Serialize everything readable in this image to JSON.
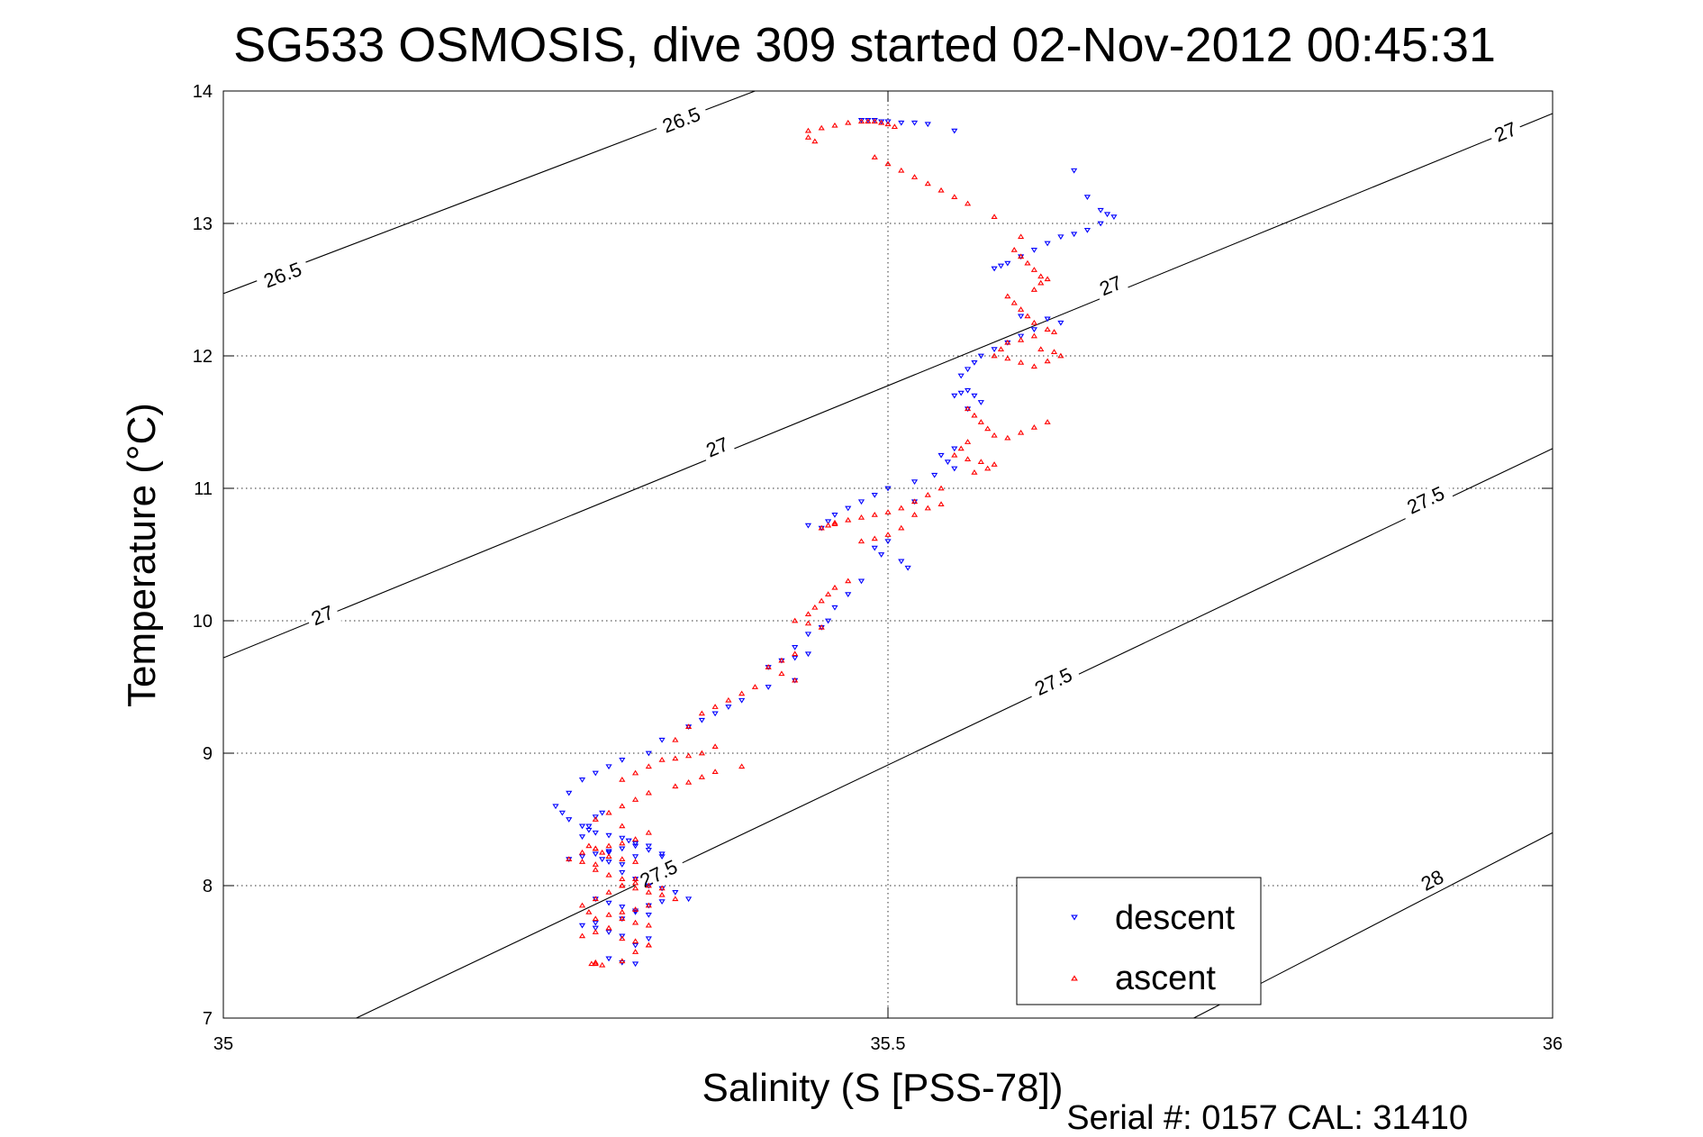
{
  "chart_data": {
    "type": "scatter",
    "title": "SG533 OSMOSIS, dive 309 started 02-Nov-2012 00:45:31",
    "xlabel": "Salinity (S [PSS-78])",
    "ylabel": "Temperature (°C)",
    "xlim": [
      35,
      36
    ],
    "ylim": [
      7,
      14
    ],
    "xticks": [
      35,
      35.5,
      36
    ],
    "xtick_labels": [
      "35",
      "35.5",
      "36"
    ],
    "yticks": [
      7,
      8,
      9,
      10,
      11,
      12,
      13,
      14
    ],
    "ytick_labels": [
      "7",
      "8",
      "9",
      "10",
      "11",
      "12",
      "13",
      "14"
    ],
    "grid": true,
    "legend_position": "bottom-right",
    "footer": "Serial #: 0157  CAL: 31410",
    "contours": [
      {
        "level": "26.5",
        "points": [
          [
            35,
            12.47
          ],
          [
            35.4,
            14
          ]
        ],
        "labels": [
          {
            "text": "26.5",
            "x": 35.045,
            "y": 12.6
          },
          {
            "text": "26.5",
            "x": 35.345,
            "y": 13.77
          }
        ]
      },
      {
        "level": "27",
        "points": [
          [
            35,
            9.72
          ],
          [
            36,
            13.83
          ]
        ],
        "labels": [
          {
            "text": "27",
            "x": 35.075,
            "y": 10.03
          },
          {
            "text": "27",
            "x": 35.372,
            "y": 11.3
          },
          {
            "text": "27",
            "x": 35.668,
            "y": 12.52
          },
          {
            "text": "27",
            "x": 35.965,
            "y": 13.68
          }
        ]
      },
      {
        "level": "27.5",
        "points": [
          [
            35.1,
            7
          ],
          [
            36,
            11.3
          ]
        ],
        "labels": [
          {
            "text": "27.5",
            "x": 35.328,
            "y": 8.08
          },
          {
            "text": "27.5",
            "x": 35.625,
            "y": 9.53
          },
          {
            "text": "27.5",
            "x": 35.905,
            "y": 10.9
          }
        ]
      },
      {
        "level": "28",
        "points": [
          [
            35.73,
            7
          ],
          [
            36,
            8.4
          ]
        ],
        "labels": [
          {
            "text": "28",
            "x": 35.91,
            "y": 8.03
          }
        ]
      }
    ],
    "series": [
      {
        "name": "descent",
        "color": "#0000ff",
        "marker": "down-triangle",
        "x": [
          35.48,
          35.485,
          35.49,
          35.495,
          35.5,
          35.51,
          35.52,
          35.53,
          35.55,
          35.64,
          35.65,
          35.66,
          35.665,
          35.67,
          35.66,
          35.65,
          35.64,
          35.63,
          35.62,
          35.61,
          35.6,
          35.59,
          35.585,
          35.58,
          35.6,
          35.62,
          35.63,
          35.61,
          35.6,
          35.59,
          35.58,
          35.57,
          35.565,
          35.56,
          35.555,
          35.55,
          35.555,
          35.56,
          35.565,
          35.57,
          35.56,
          35.55,
          35.54,
          35.545,
          35.55,
          35.535,
          35.52,
          35.5,
          35.49,
          35.48,
          35.47,
          35.46,
          35.455,
          35.44,
          35.45,
          35.52,
          35.5,
          35.49,
          35.495,
          35.51,
          35.515,
          35.48,
          35.47,
          35.46,
          35.455,
          35.45,
          35.44,
          35.43,
          35.44,
          35.43,
          35.42,
          35.41,
          35.43,
          35.41,
          35.39,
          35.38,
          35.37,
          35.36,
          35.35,
          35.33,
          35.32,
          35.3,
          35.29,
          35.28,
          35.27,
          35.26,
          35.25,
          35.255,
          35.26,
          35.27,
          35.275,
          35.28,
          35.29,
          35.3,
          35.305,
          35.31,
          35.32,
          35.3,
          35.29,
          35.28,
          35.27,
          35.26,
          35.29,
          35.31,
          35.32,
          35.33,
          35.3,
          35.31,
          35.32,
          35.33,
          35.34,
          35.35,
          35.33,
          35.32,
          35.31,
          35.28,
          35.29,
          35.3,
          35.31,
          35.32,
          35.3,
          35.28,
          35.27,
          35.28,
          35.29,
          35.3,
          35.32,
          35.31,
          35.285,
          35.29,
          35.3,
          35.31,
          35.33,
          35.29,
          35.3,
          35.31,
          35.27,
          35.275,
          35.28,
          35.285
        ],
        "y": [
          13.78,
          13.78,
          13.78,
          13.77,
          13.77,
          13.76,
          13.76,
          13.75,
          13.7,
          13.4,
          13.2,
          13.1,
          13.07,
          13.05,
          13.0,
          12.95,
          12.92,
          12.9,
          12.85,
          12.8,
          12.75,
          12.7,
          12.68,
          12.66,
          12.3,
          12.28,
          12.25,
          12.2,
          12.15,
          12.1,
          12.05,
          12.0,
          11.95,
          11.9,
          11.85,
          11.7,
          11.72,
          11.74,
          11.7,
          11.65,
          11.6,
          11.3,
          11.25,
          11.2,
          11.15,
          11.1,
          11.05,
          11.0,
          10.95,
          10.9,
          10.85,
          10.8,
          10.75,
          10.72,
          10.7,
          10.9,
          10.6,
          10.55,
          10.5,
          10.45,
          10.4,
          10.3,
          10.2,
          10.1,
          10.0,
          9.95,
          9.9,
          9.8,
          9.75,
          9.72,
          9.7,
          9.65,
          9.55,
          9.5,
          9.4,
          9.35,
          9.3,
          9.25,
          9.2,
          9.1,
          9.0,
          8.95,
          8.9,
          8.85,
          8.8,
          8.7,
          8.6,
          8.55,
          8.5,
          8.45,
          8.42,
          8.4,
          8.38,
          8.36,
          8.34,
          8.32,
          8.3,
          8.28,
          8.26,
          8.24,
          8.22,
          8.2,
          8.25,
          8.3,
          8.27,
          8.22,
          8.1,
          8.05,
          8.0,
          7.98,
          7.95,
          7.9,
          7.88,
          7.85,
          7.8,
          7.9,
          7.87,
          7.84,
          7.81,
          7.78,
          7.75,
          7.72,
          7.7,
          7.68,
          7.65,
          7.62,
          7.6,
          7.55,
          8.2,
          8.18,
          8.16,
          8.22,
          8.24,
          7.45,
          7.42,
          7.41,
          8.37,
          8.45,
          8.52,
          8.55
        ]
      },
      {
        "name": "ascent",
        "color": "#ff0000",
        "marker": "up-triangle",
        "x": [
          35.44,
          35.45,
          35.46,
          35.47,
          35.48,
          35.485,
          35.49,
          35.495,
          35.5,
          35.505,
          35.44,
          35.445,
          35.49,
          35.5,
          35.51,
          35.52,
          35.53,
          35.54,
          35.55,
          35.56,
          35.58,
          35.6,
          35.595,
          35.6,
          35.605,
          35.61,
          35.615,
          35.62,
          35.615,
          35.61,
          35.59,
          35.595,
          35.6,
          35.605,
          35.61,
          35.62,
          35.625,
          35.61,
          35.6,
          35.59,
          35.585,
          35.58,
          35.59,
          35.6,
          35.61,
          35.62,
          35.63,
          35.625,
          35.615,
          35.56,
          35.565,
          35.57,
          35.575,
          35.58,
          35.59,
          35.6,
          35.61,
          35.62,
          35.56,
          35.555,
          35.55,
          35.56,
          35.57,
          35.58,
          35.575,
          35.565,
          35.54,
          35.53,
          35.52,
          35.51,
          35.5,
          35.49,
          35.48,
          35.47,
          35.46,
          35.455,
          35.45,
          35.46,
          35.48,
          35.49,
          35.5,
          35.51,
          35.52,
          35.53,
          35.54,
          35.47,
          35.46,
          35.455,
          35.45,
          35.445,
          35.44,
          35.43,
          35.44,
          35.45,
          35.43,
          35.42,
          35.41,
          35.42,
          35.43,
          35.4,
          35.39,
          35.38,
          35.37,
          35.36,
          35.35,
          35.34,
          35.37,
          35.36,
          35.35,
          35.34,
          35.33,
          35.32,
          35.31,
          35.3,
          35.34,
          35.35,
          35.36,
          35.37,
          35.39,
          35.32,
          35.31,
          35.3,
          35.29,
          35.28,
          35.3,
          35.32,
          35.31,
          35.3,
          35.29,
          35.28,
          35.27,
          35.26,
          35.27,
          35.28,
          35.3,
          35.31,
          35.32,
          35.33,
          35.34,
          35.32,
          35.31,
          35.3,
          35.29,
          35.3,
          35.31,
          35.32,
          35.29,
          35.28,
          35.27,
          35.3,
          35.31,
          35.32,
          35.275,
          35.28,
          35.285,
          35.29,
          35.3,
          35.31,
          35.28,
          35.29,
          35.3,
          35.31,
          35.32,
          35.33,
          35.28,
          35.275,
          35.27,
          35.28,
          35.29,
          35.3,
          35.31,
          35.28,
          35.277,
          35.28,
          35.285,
          35.3,
          35.31,
          35.32
        ],
        "y": [
          13.7,
          13.72,
          13.74,
          13.76,
          13.77,
          13.77,
          13.77,
          13.76,
          13.75,
          13.73,
          13.65,
          13.62,
          13.5,
          13.45,
          13.4,
          13.35,
          13.3,
          13.25,
          13.2,
          13.15,
          13.05,
          12.9,
          12.8,
          12.75,
          12.7,
          12.65,
          12.6,
          12.58,
          12.55,
          12.5,
          12.45,
          12.4,
          12.35,
          12.3,
          12.25,
          12.2,
          12.18,
          12.15,
          12.12,
          12.1,
          12.05,
          12.0,
          11.98,
          11.95,
          11.92,
          11.96,
          12.0,
          12.03,
          12.05,
          11.6,
          11.55,
          11.5,
          11.45,
          11.4,
          11.38,
          11.42,
          11.46,
          11.5,
          11.35,
          11.3,
          11.25,
          11.22,
          11.2,
          11.18,
          11.15,
          11.12,
          11.0,
          10.95,
          10.9,
          10.85,
          10.82,
          10.8,
          10.78,
          10.76,
          10.74,
          10.72,
          10.7,
          10.73,
          10.6,
          10.62,
          10.65,
          10.7,
          10.8,
          10.85,
          10.88,
          10.3,
          10.25,
          10.2,
          10.15,
          10.1,
          10.05,
          10.0,
          9.98,
          9.95,
          9.75,
          9.7,
          9.65,
          9.6,
          9.55,
          9.5,
          9.45,
          9.4,
          9.35,
          9.3,
          9.2,
          9.1,
          9.05,
          9.0,
          8.98,
          8.96,
          8.95,
          8.9,
          8.85,
          8.8,
          8.75,
          8.78,
          8.82,
          8.86,
          8.9,
          8.7,
          8.65,
          8.6,
          8.55,
          8.5,
          8.45,
          8.4,
          8.35,
          8.32,
          8.3,
          8.28,
          8.25,
          8.2,
          8.18,
          8.16,
          8.0,
          7.98,
          7.95,
          7.93,
          7.9,
          7.85,
          7.82,
          7.8,
          7.78,
          7.75,
          7.72,
          7.7,
          7.68,
          7.65,
          7.62,
          7.6,
          7.58,
          7.55,
          8.3,
          8.28,
          8.25,
          8.22,
          8.2,
          8.18,
          8.12,
          8.08,
          8.05,
          8.02,
          8.0,
          7.98,
          7.75,
          7.8,
          7.85,
          7.9,
          7.95,
          8.0,
          8.05,
          7.42,
          7.41,
          7.41,
          7.4,
          7.43,
          7.5,
          7.55
        ]
      }
    ]
  }
}
